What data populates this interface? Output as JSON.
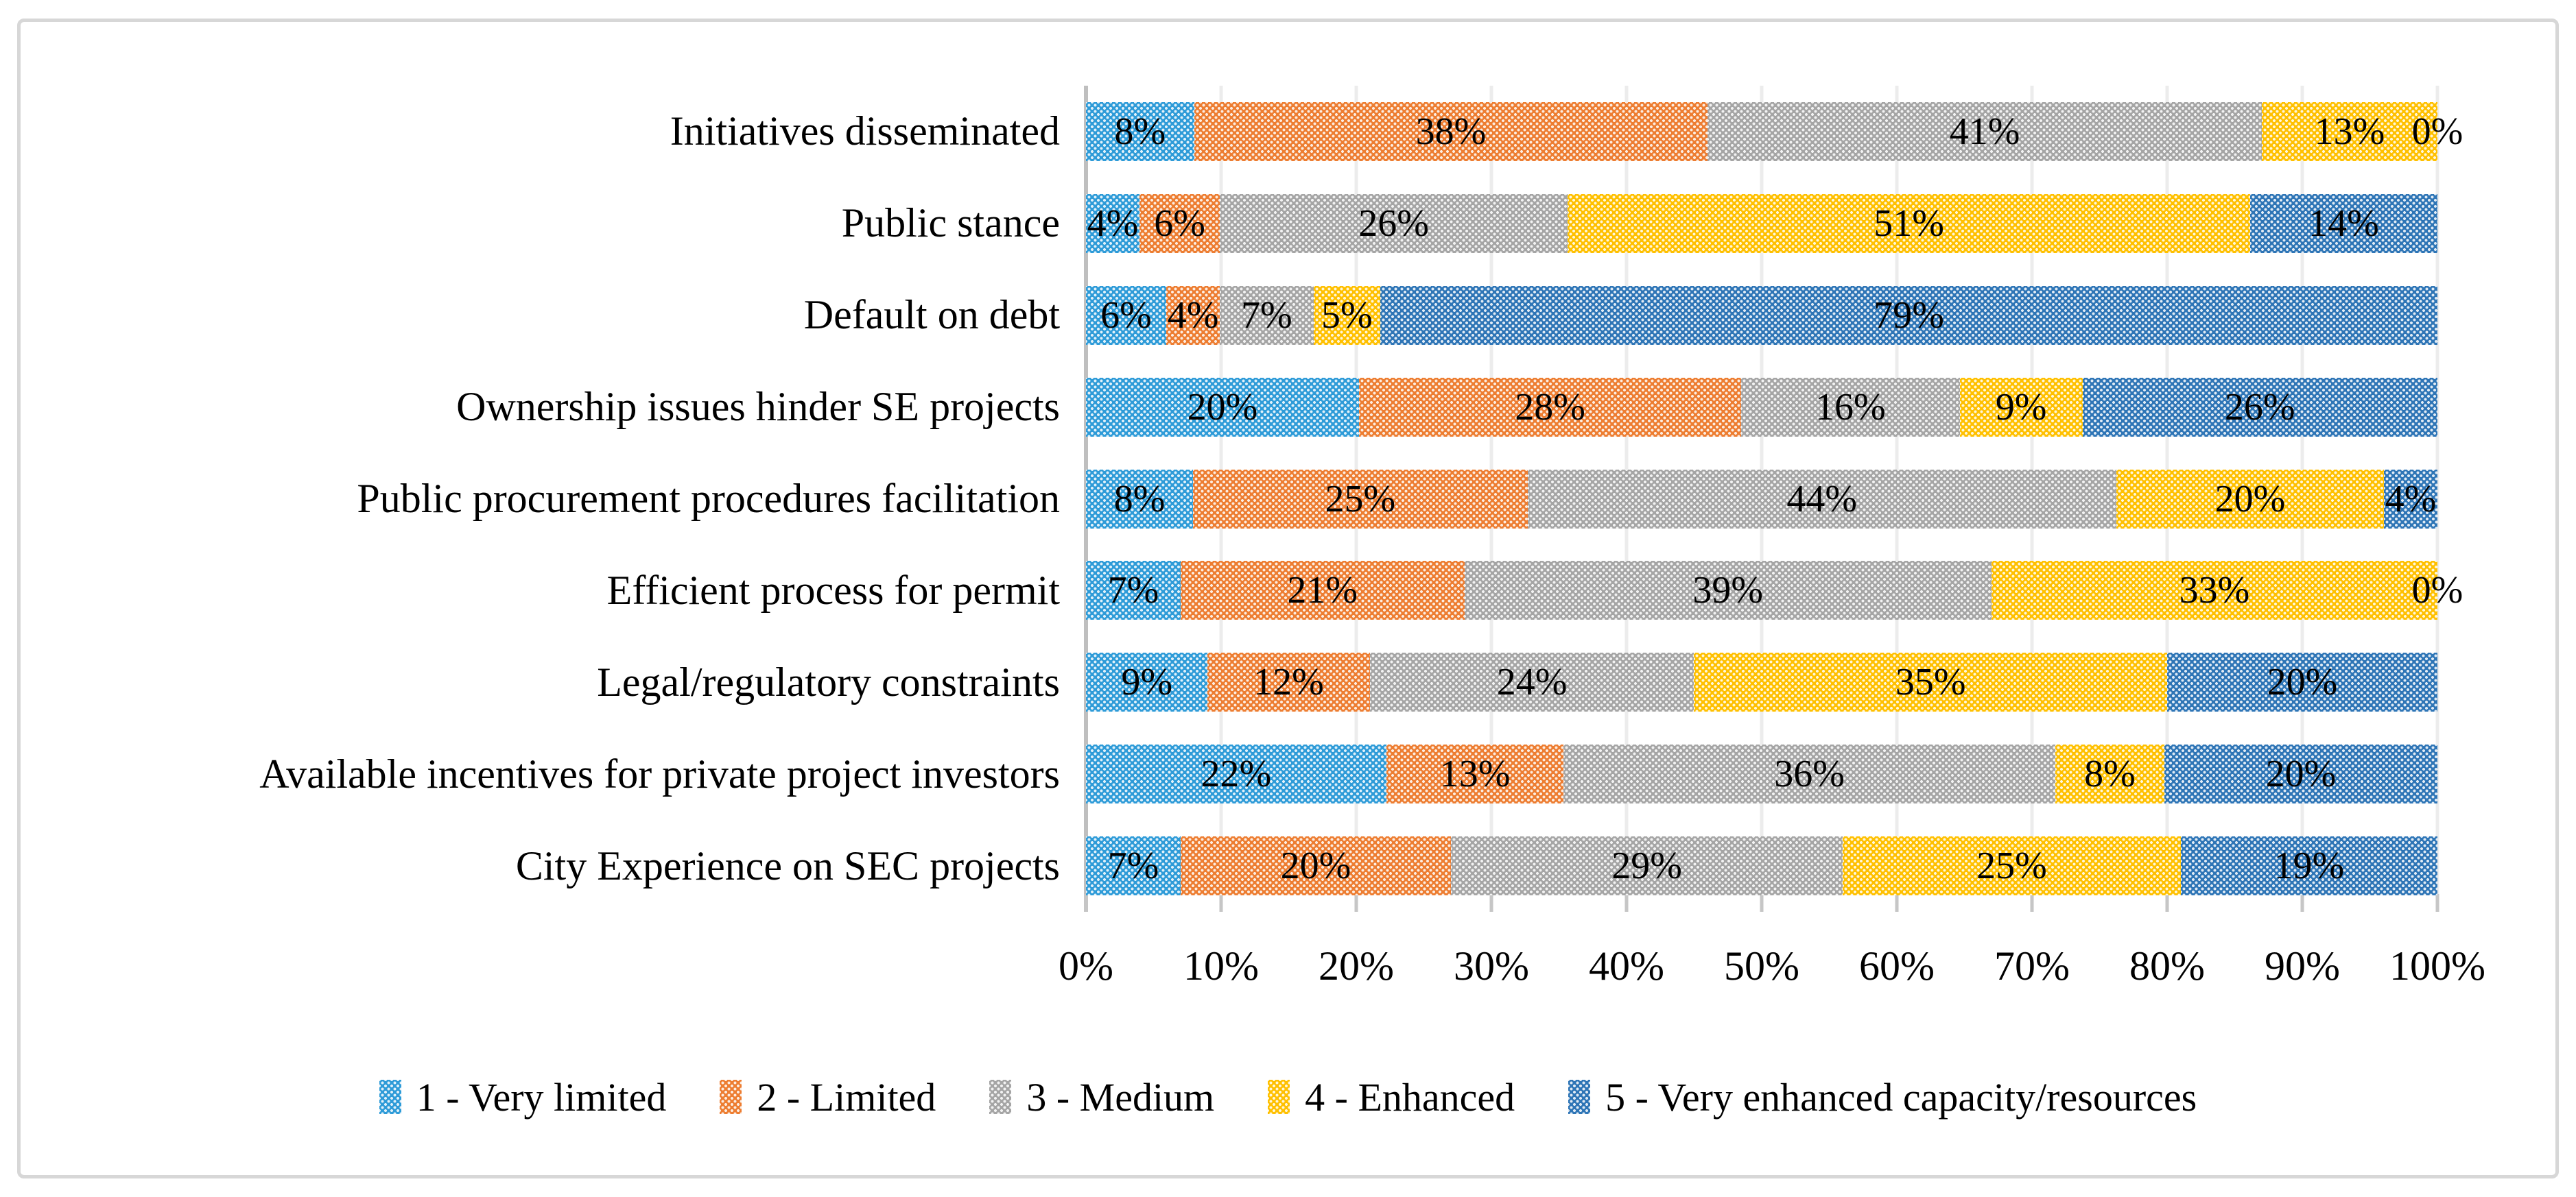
{
  "figure": {
    "border_color": "#d7d7d7",
    "background": "#ffffff"
  },
  "chart_data": {
    "type": "bar",
    "orientation": "horizontal",
    "stacked": true,
    "percent_stacked": true,
    "grid": true,
    "legend_position": "bottom",
    "data_labels": "value percent shown on every segment",
    "categories": [
      "Initiatives disseminated",
      "Public stance",
      "Default on debt",
      "Ownership issues hinder SE projects",
      "Public procurement procedures facilitation",
      "Efficient process for permit",
      "Legal/regulatory constraints",
      "Available incentives for private project investors",
      "City Experience on SEC projects"
    ],
    "series": [
      {
        "name": "1 - Very limited",
        "color": "#2e9bd8",
        "values": [
          8,
          4,
          6,
          20,
          8,
          7,
          9,
          22,
          7
        ]
      },
      {
        "name": "2 - Limited",
        "color": "#ed7d31",
        "values": [
          38,
          6,
          4,
          28,
          25,
          21,
          12,
          13,
          20
        ]
      },
      {
        "name": "3 - Medium",
        "color": "#a5a5a5",
        "values": [
          41,
          26,
          7,
          16,
          44,
          39,
          24,
          36,
          29
        ]
      },
      {
        "name": "4 - Enhanced",
        "color": "#ffc000",
        "values": [
          13,
          51,
          5,
          9,
          20,
          33,
          35,
          8,
          25
        ]
      },
      {
        "name": "5 - Very enhanced capacity/resources",
        "color": "#2e75b6",
        "values": [
          0,
          14,
          79,
          26,
          4,
          0,
          20,
          20,
          19
        ]
      }
    ],
    "x_axis": {
      "range": [
        0,
        100
      ],
      "tick_step": 10,
      "tick_labels": [
        "0%",
        "10%",
        "20%",
        "30%",
        "40%",
        "50%",
        "60%",
        "70%",
        "80%",
        "90%",
        "100%"
      ],
      "gridline_color": "#ececec",
      "axis_line_color": "#bfbfbf"
    },
    "label_suffix": "%"
  }
}
